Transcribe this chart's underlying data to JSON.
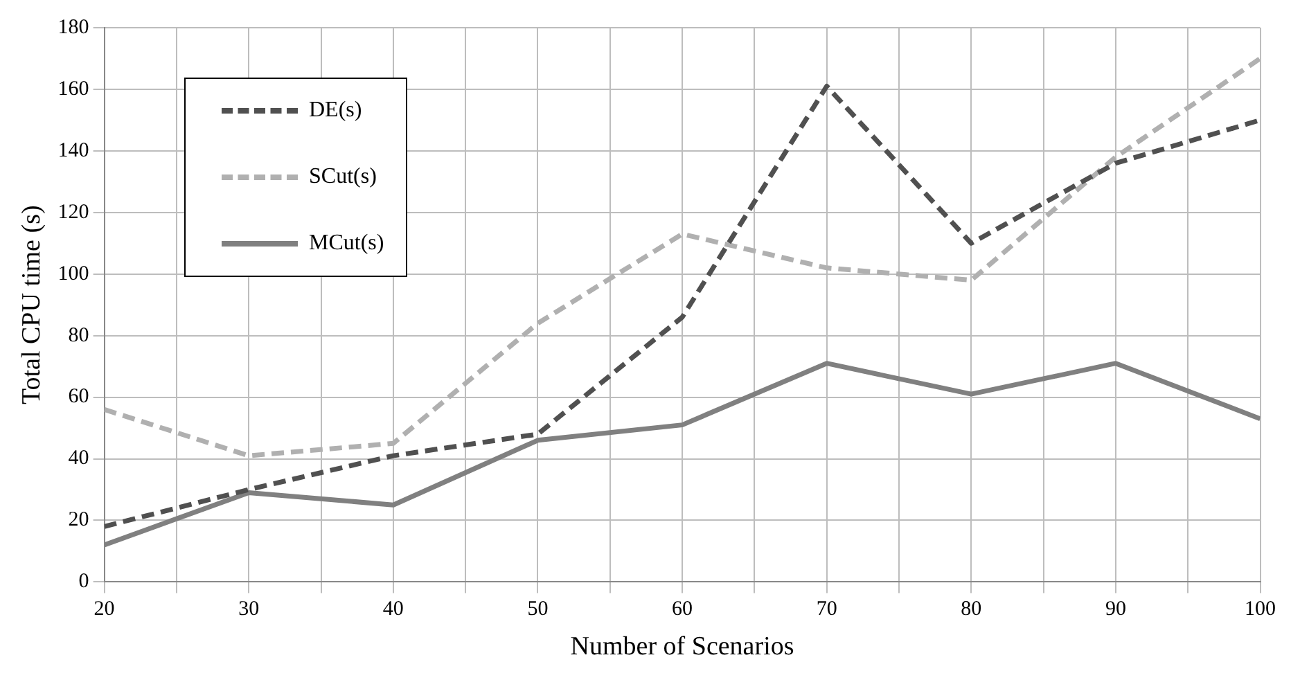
{
  "chart_data": {
    "type": "line",
    "xlabel": "Number of Scenarios",
    "ylabel": "Total CPU time (s)",
    "x": [
      20,
      30,
      40,
      50,
      60,
      70,
      80,
      90,
      100
    ],
    "series": [
      {
        "name": "DE(s)",
        "color": "#505050",
        "line_style": "dashed",
        "values": [
          18,
          30,
          41,
          48,
          86,
          161,
          110,
          136,
          150
        ]
      },
      {
        "name": "SCut(s)",
        "color": "#b0b0b0",
        "line_style": "dashed",
        "values": [
          56,
          41,
          45,
          84,
          113,
          102,
          98,
          138,
          170
        ]
      },
      {
        "name": "MCut(s)",
        "color": "#808080",
        "line_style": "solid",
        "values": [
          12,
          29,
          25,
          46,
          51,
          71,
          61,
          71,
          53
        ]
      }
    ],
    "xlim": [
      20,
      100
    ],
    "xticks": [
      20,
      {
        "value": 25,
        "label": null
      },
      30,
      {
        "value": 35,
        "label": null
      },
      40,
      {
        "value": 45,
        "label": null
      },
      50,
      {
        "value": 55,
        "label": null
      },
      60,
      {
        "value": 65,
        "label": null
      },
      70,
      {
        "value": 75,
        "label": null
      },
      80,
      {
        "value": 85,
        "label": null
      },
      90,
      {
        "value": 95,
        "label": null
      },
      100
    ],
    "ylim": [
      0,
      180
    ],
    "yticks": [
      0,
      20,
      40,
      60,
      80,
      100,
      120,
      140,
      160,
      180
    ],
    "grid": true,
    "legend": "top left",
    "marker": "none"
  }
}
